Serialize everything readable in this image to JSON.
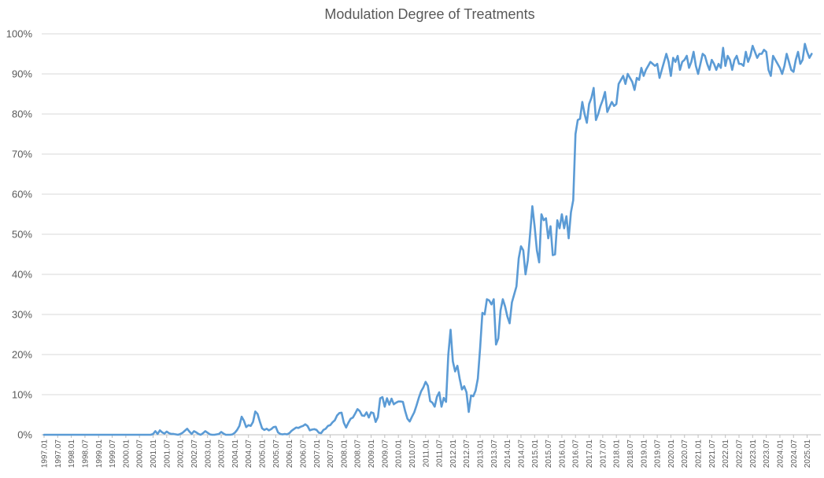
{
  "chart_data": {
    "type": "line",
    "title": "Modulation Degree of Treatments",
    "xlabel": "",
    "ylabel": "",
    "ylim": [
      0,
      100
    ],
    "y_ticks": [
      "0%",
      "10%",
      "20%",
      "30%",
      "40%",
      "50%",
      "60%",
      "70%",
      "80%",
      "90%",
      "100%"
    ],
    "x_tick_labels": [
      "1997.01",
      "1997.07",
      "1998.01",
      "1998.07",
      "1999.01",
      "1999.07",
      "2000.01",
      "2000.07",
      "2001.01",
      "2001.07",
      "2002.01",
      "2002.07",
      "2003.01",
      "2003.07",
      "2004.01",
      "2004.07",
      "2005.01",
      "2005.07",
      "2006.01",
      "2006.07",
      "2007.01",
      "2007.07",
      "2008.01",
      "2008.07",
      "2009.01",
      "2009.07",
      "2010.01",
      "2010.07",
      "2011.01",
      "2011.07",
      "2012.01",
      "2012.07",
      "2013.01",
      "2013.07",
      "2014.01",
      "2014.07",
      "2015.01",
      "2015.07",
      "2016.01",
      "2016.07",
      "2017.01",
      "2017.07",
      "2018.01",
      "2018.07",
      "2019.01",
      "2019.07",
      "2020.01",
      "2020.07",
      "2021.01",
      "2021.07",
      "2022.01",
      "2022.07",
      "2023.01",
      "2023.07",
      "2024.01",
      "2024.07",
      "2025.01"
    ],
    "grid": true,
    "legend": "none",
    "color": "#5B9BD5",
    "series": [
      {
        "x_start": "1997.01",
        "x_end": "2025.06",
        "frequency": "monthly",
        "values": [
          0,
          0,
          0,
          0,
          0,
          0,
          0,
          0,
          0,
          0,
          0,
          0,
          0,
          0,
          0,
          0,
          0,
          0,
          0,
          0,
          0,
          0,
          0,
          0,
          0,
          0,
          0,
          0,
          0,
          0,
          0,
          0,
          0,
          0,
          0,
          0,
          0,
          0,
          0,
          0,
          0,
          0,
          0,
          0,
          0,
          0,
          0,
          0,
          0.2,
          0.9,
          0.2,
          1.1,
          0.6,
          0.3,
          0.8,
          0.4,
          0.2,
          0.2,
          0.1,
          0,
          0.2,
          0.5,
          1.0,
          1.5,
          0.8,
          0.2,
          0.9,
          0.6,
          0.2,
          0,
          0.4,
          0.9,
          0.5,
          0.1,
          0,
          0,
          0.1,
          0.2,
          0.7,
          0.3,
          0,
          0,
          0,
          0.1,
          0.5,
          1.2,
          2.2,
          4.5,
          3.5,
          1.9,
          2.4,
          2.2,
          3.2,
          5.8,
          5.2,
          3.3,
          1.6,
          1.2,
          1.5,
          1.1,
          1.4,
          1.9,
          2.0,
          0.6,
          0.2,
          0.1,
          0.2,
          0.1,
          0.4,
          1.0,
          1.4,
          1.8,
          1.7,
          2.0,
          2.2,
          2.6,
          2.2,
          1.1,
          1.3,
          1.4,
          1.2,
          0.5,
          0.4,
          1.2,
          1.5,
          2.2,
          2.4,
          3.1,
          3.6,
          4.8,
          5.4,
          5.5,
          3.0,
          1.8,
          3.0,
          4.0,
          4.3,
          5.3,
          6.4,
          5.9,
          4.8,
          4.7,
          5.6,
          4.3,
          5.6,
          5.4,
          3.2,
          4.4,
          9.1,
          9.4,
          7.0,
          9.1,
          7.5,
          9.0,
          7.6,
          8.0,
          8.3,
          8.3,
          8.2,
          5.9,
          4.0,
          3.3,
          4.5,
          5.6,
          7.3,
          9.2,
          10.8,
          11.8,
          13.2,
          12.2,
          8.4,
          8.0,
          7.0,
          9.5,
          10.6,
          7.0,
          9.2,
          8.2,
          20.0,
          26.2,
          18.3,
          15.8,
          17.2,
          14.0,
          11.3,
          12.1,
          10.6,
          5.7,
          9.8,
          9.6,
          11.0,
          14.0,
          21.6,
          30.4,
          30.0,
          33.8,
          33.5,
          32.5,
          33.8,
          22.5,
          24.0,
          31.0,
          33.8,
          32.0,
          29.5,
          27.8,
          33.0,
          35.0,
          37.0,
          44.0,
          47.0,
          46.0,
          40.0,
          43.5,
          50.0,
          57.0,
          52.0,
          46.0,
          43.0,
          55.0,
          53.5,
          54.0,
          49.0,
          52.0,
          44.8,
          45.0,
          53.5,
          51.5,
          55.0,
          51.5,
          54.5,
          49.0,
          55.5,
          58.5,
          75.0,
          78.5,
          78.8,
          83.0,
          80.0,
          77.8,
          82.5,
          84.0,
          86.5,
          78.5,
          80.0,
          82.0,
          83.5,
          85.5,
          80.5,
          81.8,
          83.0,
          82.0,
          82.5,
          87.5,
          88.5,
          89.5,
          87.5,
          90.0,
          89.0,
          88.0,
          86.0,
          89.0,
          88.5,
          91.5,
          89.5,
          91.0,
          92.0,
          93.0,
          92.5,
          92.0,
          92.5,
          89.0,
          91.0,
          93.0,
          95.0,
          93.0,
          89.5,
          94.0,
          93.0,
          94.5,
          91.0,
          93.0,
          93.5,
          94.5,
          91.5,
          93.0,
          95.5,
          92.0,
          90.0,
          92.5,
          95.0,
          94.5,
          92.5,
          91.0,
          93.5,
          92.5,
          91.0,
          92.5,
          91.5,
          96.5,
          92.0,
          94.5,
          93.5,
          91.0,
          93.5,
          94.5,
          92.5,
          92.5,
          92.0,
          95.5,
          93.0,
          94.5,
          97.0,
          95.5,
          94.0,
          95.0,
          95.0,
          96.0,
          95.5,
          91.0,
          89.5,
          94.5,
          93.5,
          92.5,
          91.5,
          90.0,
          92.0,
          95.0,
          93.0,
          91.0,
          90.5,
          93.5,
          95.5,
          92.5,
          93.5,
          97.5,
          95.5,
          94.0,
          95.0
        ]
      }
    ]
  }
}
